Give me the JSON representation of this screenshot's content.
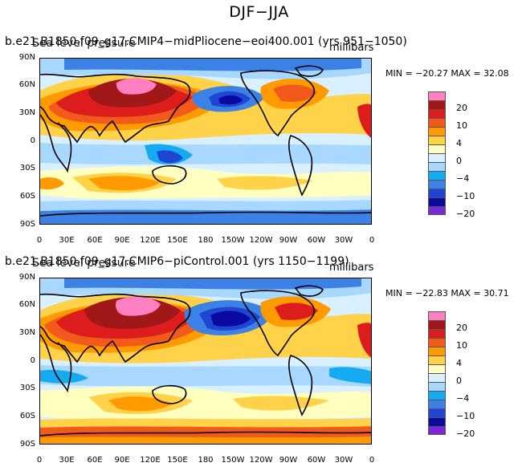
{
  "title": "DJF−JJA",
  "panels": [
    {
      "case": "b.e21.B1850.f09_g17.CMIP4−midPliocene−eoi400.001 (yrs 951−1050)",
      "variable": "Sea level pressure",
      "units": "millibars",
      "min_label": "MIN = −20.27",
      "max_label": "MAX =  32.08"
    },
    {
      "case": "b.e21.B1850.f09_g17.CMIP6−piControl.001 (yrs 1150−1199)",
      "variable": "Sea level pressure",
      "units": "millibars",
      "min_label": "MIN = −22.83",
      "max_label": "MAX =  30.71"
    }
  ],
  "lat_labels": [
    "90N",
    "60N",
    "30N",
    "0",
    "30S",
    "60S",
    "90S"
  ],
  "lon_labels": [
    "0",
    "30E",
    "60E",
    "90E",
    "120E",
    "150E",
    "180",
    "150W",
    "120W",
    "90W",
    "60W",
    "30W",
    "0"
  ],
  "colorbar": {
    "colors": [
      "#ff80c0",
      "#a01818",
      "#dd1c1c",
      "#f25a1c",
      "#ff9a00",
      "#ffd24a",
      "#ffffc0",
      "#d8f0ff",
      "#a8d8ff",
      "#16aaf0",
      "#3c82e6",
      "#1e46d2",
      "#0a0aa0",
      "#7a28d2"
    ],
    "labels": [
      "20",
      "10",
      "4",
      "0",
      "−4",
      "−10",
      "−20"
    ]
  }
}
